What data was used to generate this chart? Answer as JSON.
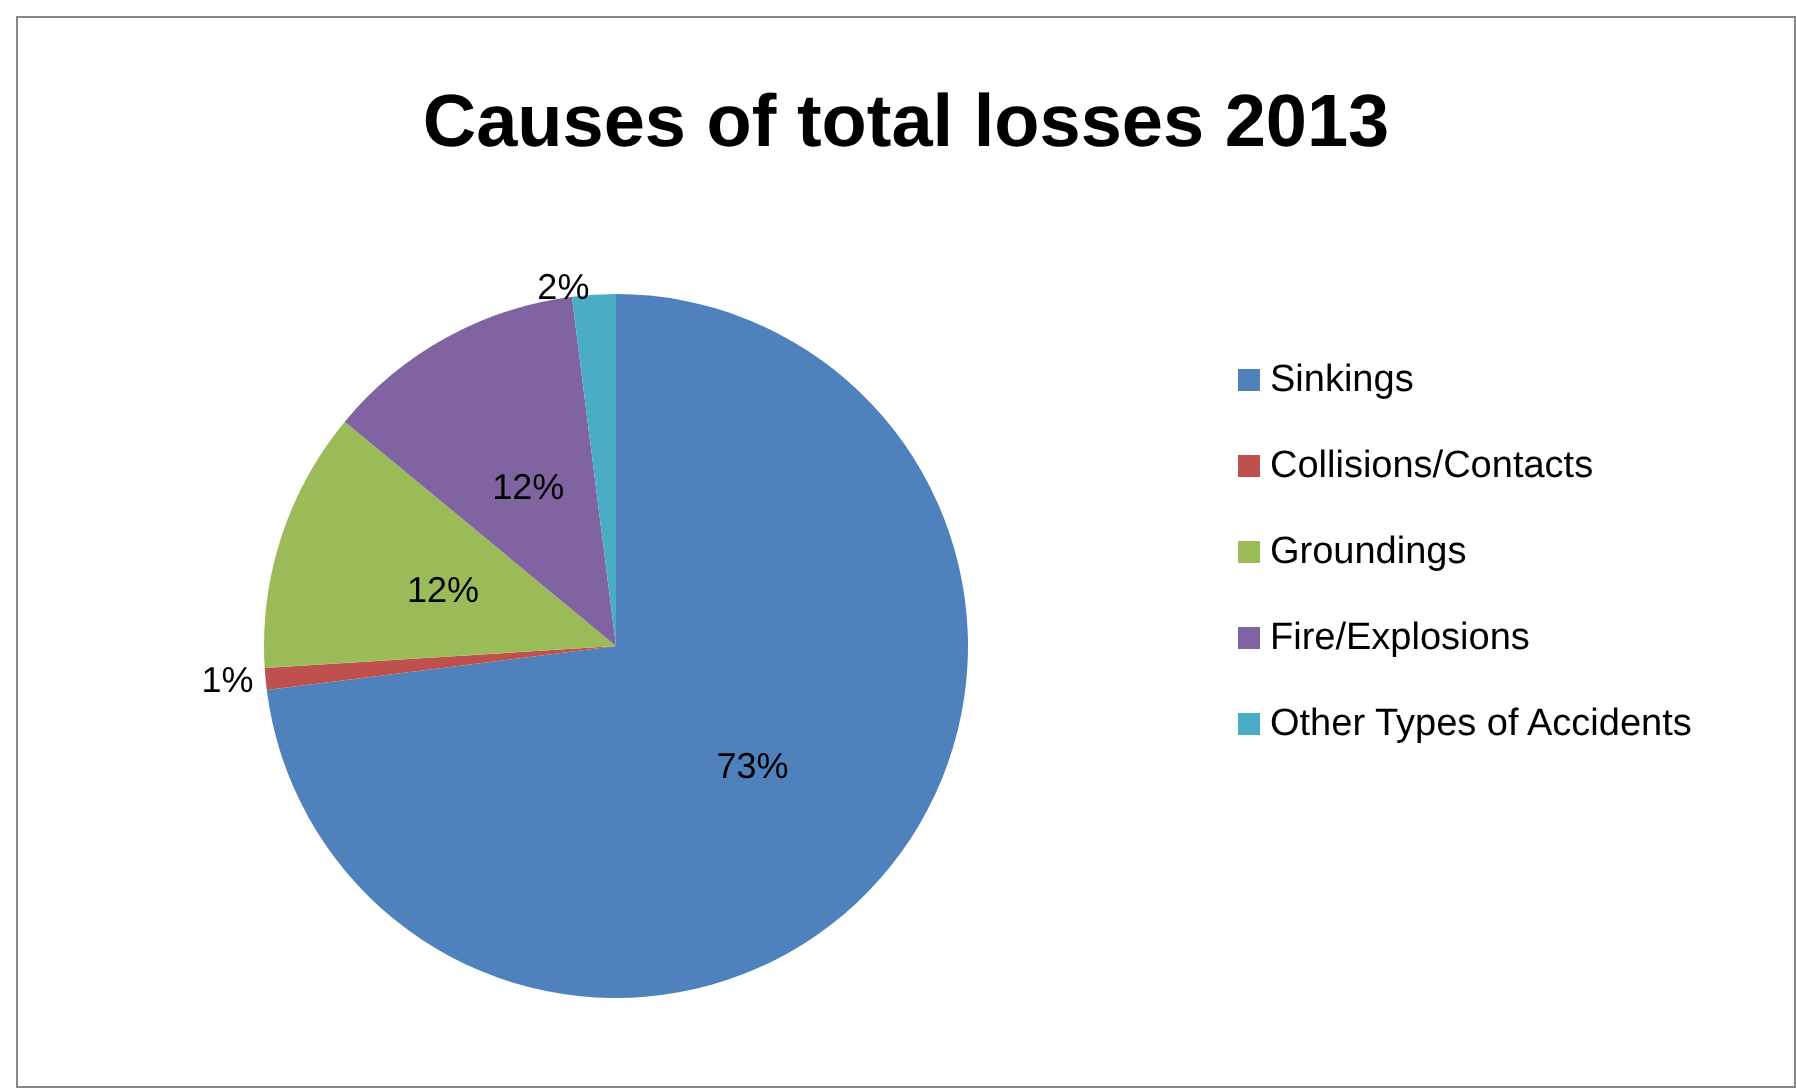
{
  "chart_data": {
    "type": "pie",
    "title": "Causes of total losses 2013",
    "categories": [
      "Sinkings",
      "Collisions/Contacts",
      "Groundings",
      "Fire/Explosions",
      "Other Types of Accidents"
    ],
    "values": [
      73,
      1,
      12,
      12,
      2
    ],
    "colors": [
      "#4f81bd",
      "#c0504d",
      "#9bbb59",
      "#8064a2",
      "#4bacc6"
    ],
    "value_labels": [
      "73%",
      "1%",
      "12%",
      "12%",
      "2%"
    ],
    "legend": "right"
  }
}
